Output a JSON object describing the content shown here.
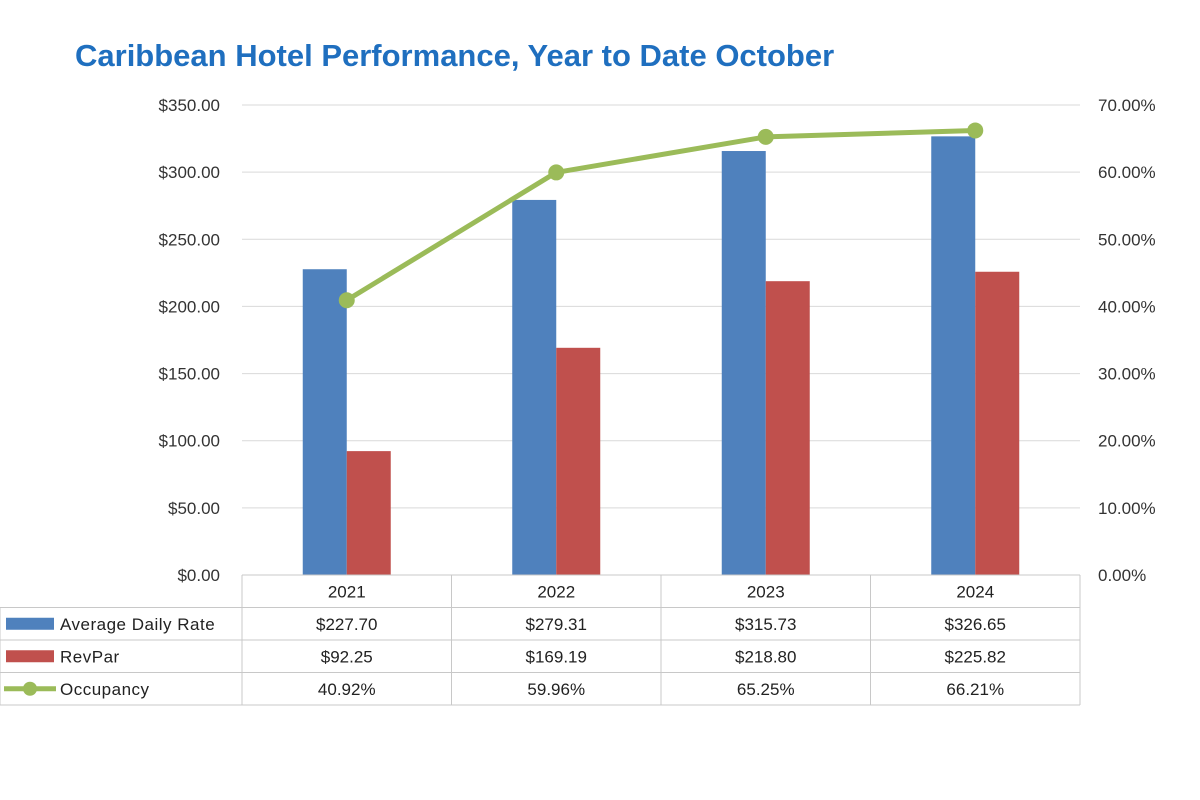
{
  "chart_data": {
    "type": "bar",
    "title": "Caribbean Hotel Performance, Year to Date October",
    "categories": [
      "2021",
      "2022",
      "2023",
      "2024"
    ],
    "series": [
      {
        "name": "Average Daily Rate",
        "type": "bar",
        "axis": "left",
        "color": "#4f81bd",
        "values": [
          227.7,
          279.31,
          315.73,
          326.65
        ],
        "labels": [
          "$227.70",
          "$279.31",
          "$315.73",
          "$326.65"
        ]
      },
      {
        "name": "RevPar",
        "type": "bar",
        "axis": "left",
        "color": "#c0504d",
        "values": [
          92.25,
          169.19,
          218.8,
          225.82
        ],
        "labels": [
          "$92.25",
          "$169.19",
          "$218.80",
          "$225.82"
        ]
      },
      {
        "name": "Occupancy",
        "type": "line",
        "axis": "right",
        "color": "#9bbb59",
        "values": [
          40.92,
          59.96,
          65.25,
          66.21
        ],
        "labels": [
          "40.92%",
          "59.96%",
          "65.25%",
          "66.21%"
        ]
      }
    ],
    "y_left": {
      "min": 0,
      "max": 350,
      "step": 50,
      "tick_labels": [
        "$0.00",
        "$50.00",
        "$100.00",
        "$150.00",
        "$200.00",
        "$250.00",
        "$300.00",
        "$350.00"
      ]
    },
    "y_right": {
      "min": 0,
      "max": 70,
      "step": 10,
      "tick_labels": [
        "0.00%",
        "10.00%",
        "20.00%",
        "30.00%",
        "40.00%",
        "50.00%",
        "60.00%",
        "70.00%"
      ]
    },
    "grid": true,
    "legend": "data-table-below"
  }
}
